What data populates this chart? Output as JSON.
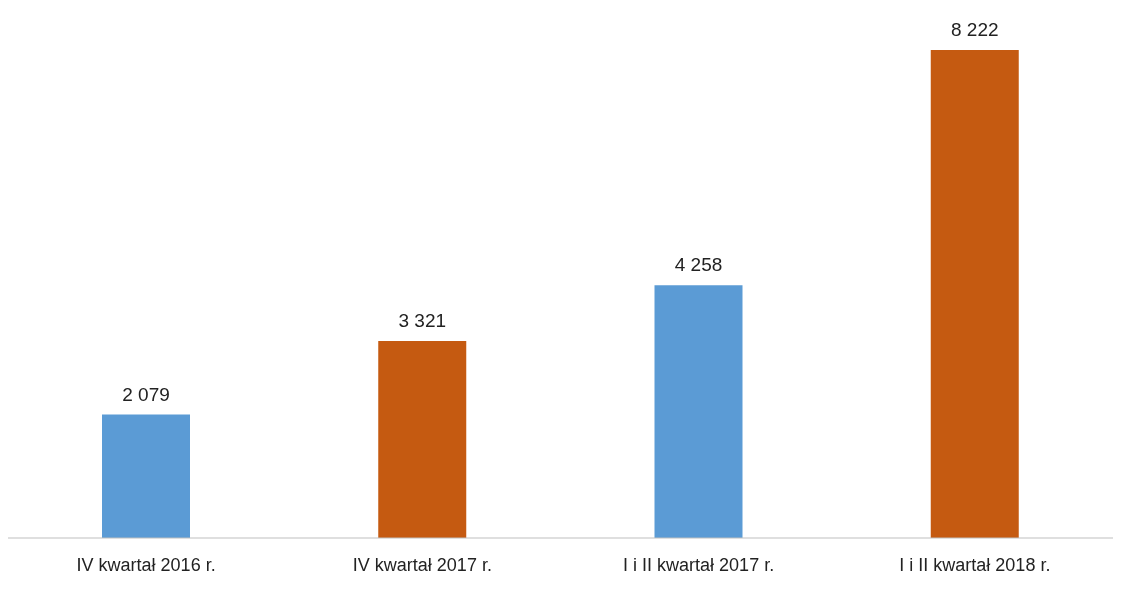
{
  "chart_data": {
    "type": "bar",
    "categories": [
      "IV kwartał 2016 r.",
      "IV kwartał 2017 r.",
      "I i II kwartał 2017 r.",
      "I i II kwartał 2018 r."
    ],
    "values": [
      2079,
      3321,
      4258,
      8222
    ],
    "colors": [
      "#5b9bd5",
      "#c55a11",
      "#5b9bd5",
      "#c55a11"
    ],
    "value_labels": [
      "2 079",
      "3 321",
      "4 258",
      "8 222"
    ],
    "grid": false,
    "legend": false
  }
}
